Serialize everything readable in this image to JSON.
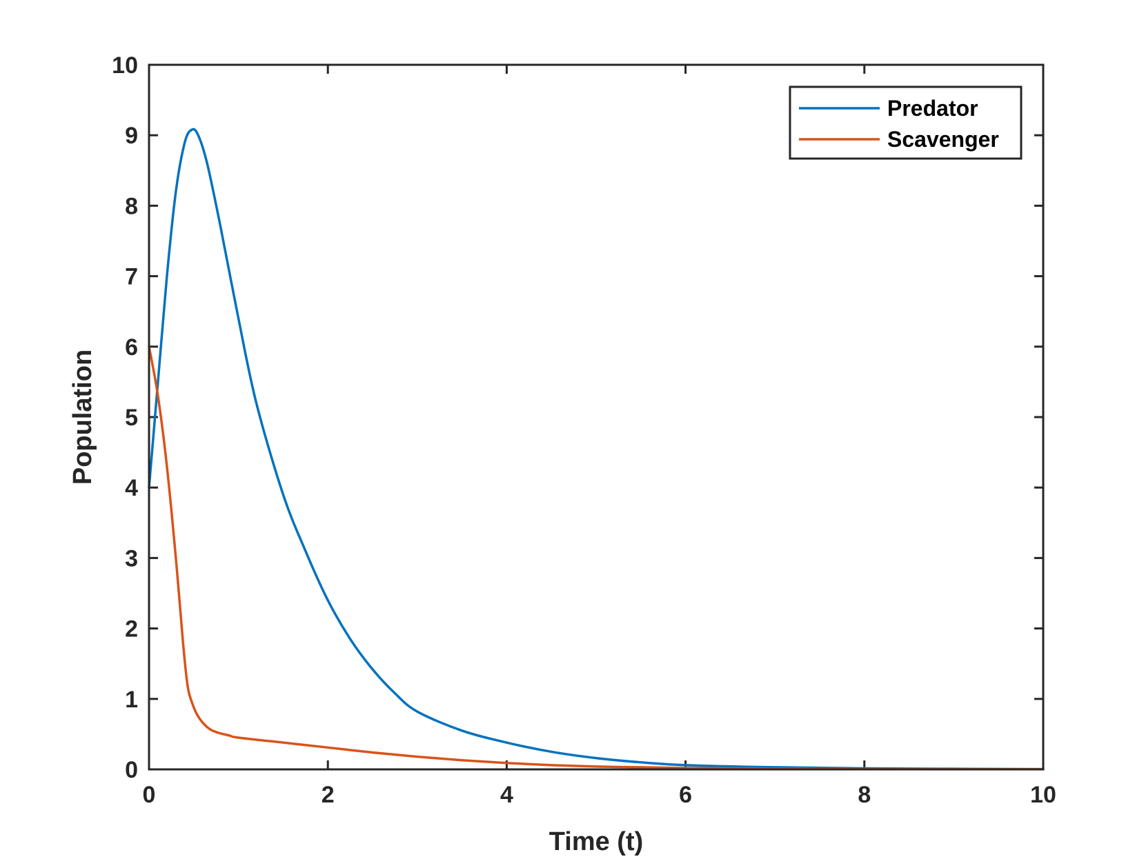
{
  "chart_data": {
    "type": "line",
    "title": "",
    "xlabel": "Time (t)",
    "ylabel": "Population",
    "xlim": [
      0,
      10
    ],
    "ylim": [
      0,
      10
    ],
    "x_ticks": [
      0,
      2,
      4,
      6,
      8,
      10
    ],
    "y_ticks": [
      0,
      1,
      2,
      3,
      4,
      5,
      6,
      7,
      8,
      9,
      10
    ],
    "grid": false,
    "legend_position": "top-right",
    "series": [
      {
        "name": "Predator",
        "color": "#0072BD",
        "x": [
          0,
          0.1,
          0.2,
          0.3,
          0.4,
          0.48,
          0.55,
          0.65,
          0.8,
          1.0,
          1.2,
          1.5,
          1.75,
          2.0,
          2.25,
          2.5,
          2.75,
          3.0,
          3.5,
          4.0,
          4.5,
          5.0,
          5.5,
          6.0,
          7.0,
          8.0,
          9.0,
          10.0
        ],
        "y": [
          4.0,
          5.5,
          7.0,
          8.2,
          8.9,
          9.08,
          9.0,
          8.6,
          7.7,
          6.4,
          5.2,
          3.9,
          3.1,
          2.4,
          1.85,
          1.42,
          1.08,
          0.82,
          0.55,
          0.38,
          0.25,
          0.16,
          0.1,
          0.06,
          0.03,
          0.015,
          0.008,
          0.004
        ]
      },
      {
        "name": "Scavenger",
        "color": "#D95319",
        "x": [
          0,
          0.1,
          0.2,
          0.3,
          0.38,
          0.43,
          0.48,
          0.55,
          0.65,
          0.75,
          0.9,
          1.0,
          1.5,
          2.0,
          2.5,
          3.0,
          3.5,
          4.0,
          4.5,
          5.0,
          5.5,
          6.0,
          7.0,
          8.0,
          9.0,
          10.0
        ],
        "y": [
          6.0,
          5.3,
          4.3,
          3.0,
          1.8,
          1.2,
          0.95,
          0.75,
          0.6,
          0.53,
          0.48,
          0.45,
          0.38,
          0.31,
          0.24,
          0.18,
          0.13,
          0.09,
          0.06,
          0.04,
          0.03,
          0.02,
          0.01,
          0.005,
          0.003,
          0.002
        ]
      }
    ]
  }
}
